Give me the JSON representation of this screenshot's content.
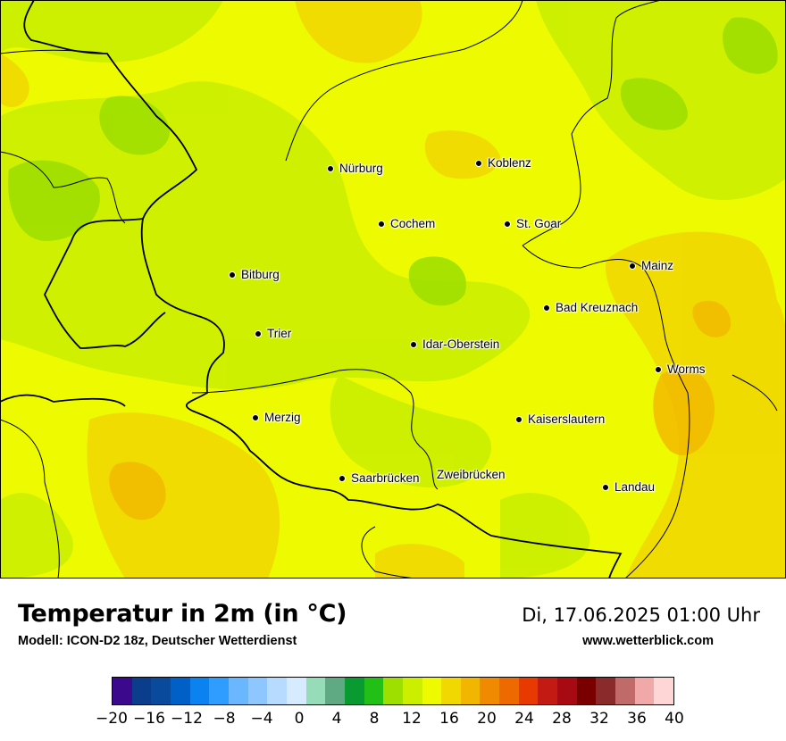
{
  "title": "Temperatur in 2m (in °C)",
  "model": "Modell: ICON-D2 18z, Deutscher Wetterdienst",
  "datetime": "Di, 17.06.2025 01:00 Uhr",
  "website": "www.wetterblick.com",
  "cities": [
    {
      "name": "Nürburg"
    },
    {
      "name": "Koblenz"
    },
    {
      "name": "Cochem"
    },
    {
      "name": "St. Goar"
    },
    {
      "name": "Mainz"
    },
    {
      "name": "Bitburg"
    },
    {
      "name": "Bad Kreuznach"
    },
    {
      "name": "Trier"
    },
    {
      "name": "Idar-Oberstein"
    },
    {
      "name": "Worms"
    },
    {
      "name": "Merzig"
    },
    {
      "name": "Kaiserslautern"
    },
    {
      "name": "Saarbrücken"
    },
    {
      "name": "Zweibrücken"
    },
    {
      "name": "Landau"
    }
  ],
  "colorbar": {
    "unit": "°C",
    "ticks": [
      "−20",
      "−16",
      "−12",
      "−8",
      "−4",
      "0",
      "4",
      "8",
      "12",
      "16",
      "20",
      "24",
      "28",
      "32",
      "36",
      "40"
    ],
    "colors": [
      "#3b0a8c",
      "#0a3d8c",
      "#0a4a9c",
      "#0060c8",
      "#0a82f0",
      "#2f9cff",
      "#6ab6ff",
      "#8ec6ff",
      "#b6dbff",
      "#d6ebff",
      "#96dcb8",
      "#5faa82",
      "#0a9a32",
      "#22bf16",
      "#9fdf00",
      "#ccef00",
      "#eefb00",
      "#f0d800",
      "#f2b600",
      "#f08a00",
      "#ee6a00",
      "#e83a00",
      "#c41a14",
      "#a80a14",
      "#7a0000",
      "#8a2a2a",
      "#c06a6a",
      "#f0a8a8",
      "#ffd6d6"
    ]
  }
}
